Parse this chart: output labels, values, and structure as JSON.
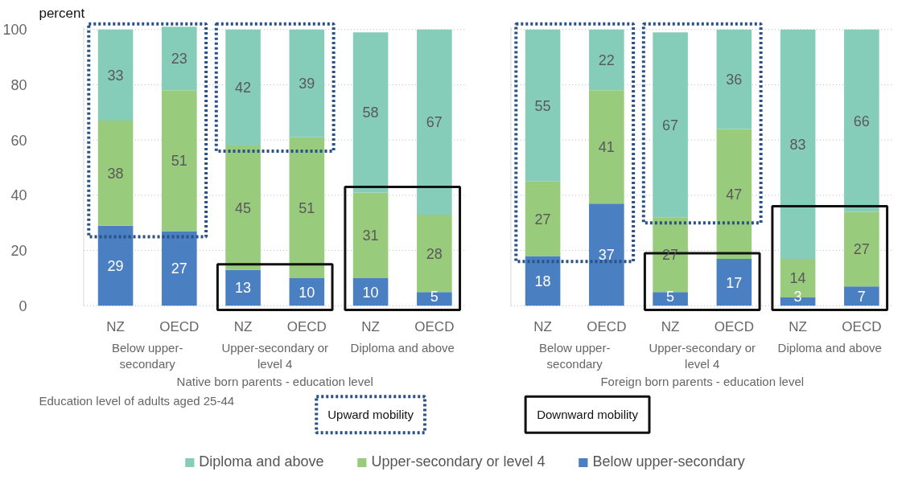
{
  "chart_data": [
    {
      "type": "bar",
      "stacked": true,
      "categories": [
        "NZ",
        "OECD",
        "NZ",
        "OECD",
        "NZ",
        "OECD"
      ],
      "xlabel": "Native born parents - education level",
      "ylabel": "percent",
      "ylim": [
        0,
        101
      ],
      "yticks": [
        0,
        20,
        40,
        60,
        80,
        100
      ],
      "grid": "y",
      "legend": "bottom",
      "data_labels": true,
      "annotations": [
        "Below upper-secondary",
        "Upper-secondary or level 4",
        "Diploma and above",
        "Education level of adults aged 25-44",
        "Upward mobility",
        "Downward mobility"
      ],
      "series": [
        {
          "name": "Below upper-secondary",
          "color": "#4a7fc1",
          "values": [
            29,
            27,
            13,
            10,
            10,
            5
          ]
        },
        {
          "name": "Upper-secondary or level 4",
          "color": "#98cc7c",
          "values": [
            38,
            51,
            45,
            51,
            31,
            28
          ]
        },
        {
          "name": "Diploma and above",
          "color": "#86cdb9",
          "values": [
            33,
            23,
            42,
            39,
            58,
            67
          ]
        }
      ]
    },
    {
      "type": "bar",
      "stacked": true,
      "categories": [
        "NZ",
        "OECD",
        "NZ",
        "OECD",
        "NZ",
        "OECD"
      ],
      "xlabel": "Foreign born parents - education level",
      "ylim": [
        0,
        101
      ],
      "yticks": [
        0,
        20,
        40,
        60,
        80,
        100
      ],
      "grid": "y",
      "tick_labels": "x",
      "data_labels": true,
      "annotations": [
        "Below upper-secondary",
        "Upper-secondary or level 4",
        "Diploma and above"
      ],
      "series": [
        {
          "color": "#4a7fc1",
          "values": [
            18,
            37,
            5,
            17,
            3,
            7
          ]
        },
        {
          "color": "#98cc7c",
          "values": [
            27,
            41,
            27,
            47,
            14,
            27
          ]
        },
        {
          "color": "#86cdb9",
          "values": [
            55,
            22,
            67,
            36,
            83,
            66
          ]
        }
      ]
    }
  ]
}
